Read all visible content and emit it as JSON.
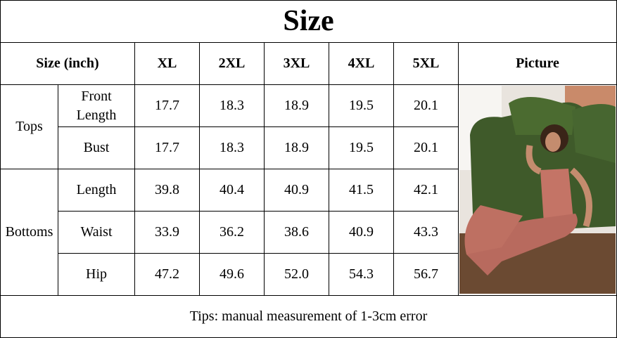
{
  "title": "Size",
  "table": {
    "header": [
      "Size (inch)",
      "XL",
      "2XL",
      "3XL",
      "4XL",
      "5XL",
      "Picture"
    ],
    "groups": [
      {
        "label": "Tops",
        "rows": [
          {
            "label": "Front Length",
            "values": [
              "17.7",
              "18.3",
              "18.9",
              "19.5",
              "20.1"
            ]
          },
          {
            "label": "Bust",
            "values": [
              "17.7",
              "18.3",
              "18.9",
              "19.5",
              "20.1"
            ]
          }
        ]
      },
      {
        "label": "Bottoms",
        "rows": [
          {
            "label": "Length",
            "values": [
              "39.8",
              "40.4",
              "40.9",
              "41.5",
              "42.1"
            ]
          },
          {
            "label": "Waist",
            "values": [
              "33.9",
              "36.2",
              "38.6",
              "40.9",
              "43.3"
            ]
          },
          {
            "label": "Hip",
            "values": [
              "47.2",
              "49.6",
              "52.0",
              "54.3",
              "56.7"
            ]
          }
        ]
      }
    ]
  },
  "tips": "Tips: manual measurement of 1-3cm error"
}
